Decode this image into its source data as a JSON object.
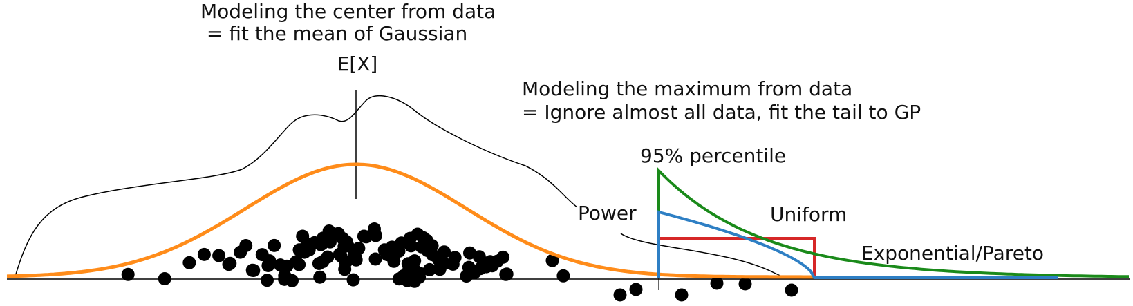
{
  "labels": {
    "center_line1": "Modeling the center from data",
    "center_line2": " = fit the mean of Gaussian",
    "mean_symbol": "E[X]",
    "max_line1": "Modeling the maximum from data",
    "max_line2": "= Ignore almost all data, fit the tail to GP",
    "percentile": "95% percentile",
    "power": "Power",
    "uniform": "Uniform",
    "exp_pareto": "Exponential/Pareto"
  },
  "colors": {
    "gaussian": "#ff8c1a",
    "power": "#2e7fc4",
    "uniform": "#d62728",
    "exp_pareto": "#1a8a1a",
    "data_points": "#000000",
    "outline": "#000000"
  },
  "icons": {
    "data_point": "filled-circle"
  },
  "data_points": {
    "count": 118
  }
}
